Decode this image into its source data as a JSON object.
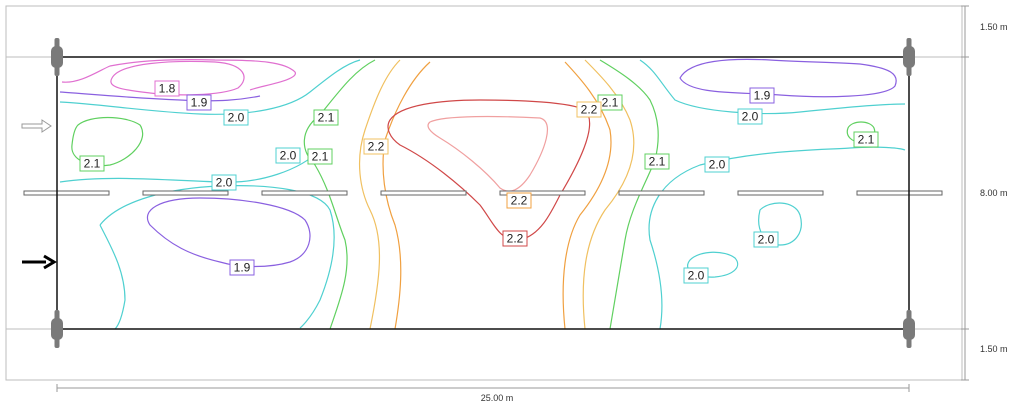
{
  "dimensions": {
    "top_margin": "1.50 m",
    "field_height": "8.00 m",
    "bottom_margin": "1.50 m",
    "width": "25.00 m"
  },
  "labels": {
    "l18": "1.8",
    "l19a": "1.9",
    "l19b": "1.9",
    "l19c": "1.9",
    "l20a": "2.0",
    "l20b": "2.0",
    "l20c": "2.0",
    "l20d": "2.0",
    "l20e": "2.0",
    "l20f": "2.0",
    "l20g": "2.0",
    "l21a": "2.1",
    "l21b": "2.1",
    "l21c": "2.1",
    "l21d": "2.1",
    "l21e": "2.1",
    "l21f": "2.1",
    "l22a": "2.2",
    "l22b": "2.2",
    "l22c": "2.2",
    "l22d": "2.2"
  },
  "contour_colors": {
    "1.8": "#e070d0",
    "1.9": "#8a60e0",
    "2.0": "#4fd0d0",
    "2.1": "#60d060",
    "2.2": "#d04848",
    "2.3": "#f0a0a0"
  }
}
